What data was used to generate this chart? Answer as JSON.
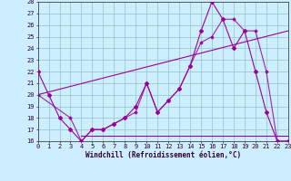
{
  "xlabel": "Windchill (Refroidissement éolien,°C)",
  "bg_color": "#cceeff",
  "grid_color": "#99cccc",
  "line_color": "#990099",
  "xlim": [
    0,
    23
  ],
  "ylim": [
    16,
    28
  ],
  "xticks": [
    0,
    1,
    2,
    3,
    4,
    5,
    6,
    7,
    8,
    9,
    10,
    11,
    12,
    13,
    14,
    15,
    16,
    17,
    18,
    19,
    20,
    21,
    22,
    23
  ],
  "yticks": [
    16,
    17,
    18,
    19,
    20,
    21,
    22,
    23,
    24,
    25,
    26,
    27,
    28
  ],
  "line1_x": [
    0,
    1,
    2,
    3,
    4,
    5,
    6,
    7,
    8,
    9,
    10,
    11,
    12,
    13,
    14,
    15,
    16,
    17,
    18,
    19,
    20,
    21,
    22,
    23
  ],
  "line1_y": [
    22,
    20,
    18,
    17,
    16,
    17,
    17,
    17.5,
    18,
    19,
    21,
    18.5,
    19.5,
    20.5,
    22.5,
    25.5,
    28,
    26.5,
    24,
    25.5,
    22,
    18.5,
    16,
    16
  ],
  "line2_x": [
    0,
    23
  ],
  "line2_y": [
    20,
    25.5
  ],
  "line3_x": [
    0,
    3,
    4,
    5,
    6,
    7,
    8,
    9,
    10,
    11,
    12,
    13,
    14,
    15,
    16,
    17,
    18,
    19,
    20,
    21,
    22,
    23
  ],
  "line3_y": [
    20,
    18,
    16,
    17,
    17,
    17.5,
    18,
    18.5,
    21,
    18.5,
    19.5,
    20.5,
    22.5,
    24.5,
    25,
    26.5,
    26.5,
    25.5,
    25.5,
    22,
    16,
    16
  ]
}
